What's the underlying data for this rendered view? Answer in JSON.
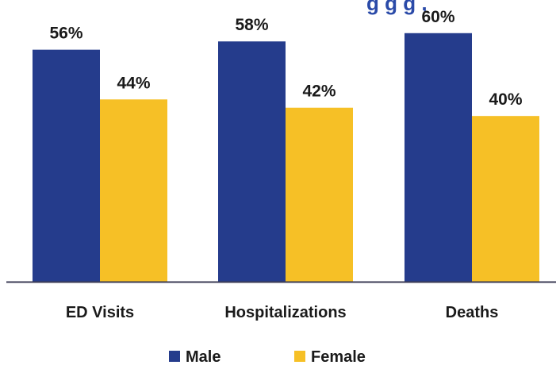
{
  "top_fragment": "g   g g  ,",
  "chart_data": {
    "type": "bar",
    "categories": [
      "ED Visits",
      "Hospitalizations",
      "Deaths"
    ],
    "series": [
      {
        "name": "Male",
        "values": [
          56,
          58,
          60
        ],
        "labels": [
          "56%",
          "58%",
          "60%"
        ],
        "color": "#253C8C"
      },
      {
        "name": "Female",
        "values": [
          44,
          42,
          40
        ],
        "labels": [
          "44%",
          "42%",
          "40%"
        ],
        "color": "#F6C026"
      }
    ],
    "ylim": [
      0,
      68
    ],
    "grid": false,
    "legend_position": "bottom",
    "axis_color": "#3b3b55",
    "top_text_color": "#2a4aa8",
    "xlabel": "",
    "ylabel": ""
  }
}
